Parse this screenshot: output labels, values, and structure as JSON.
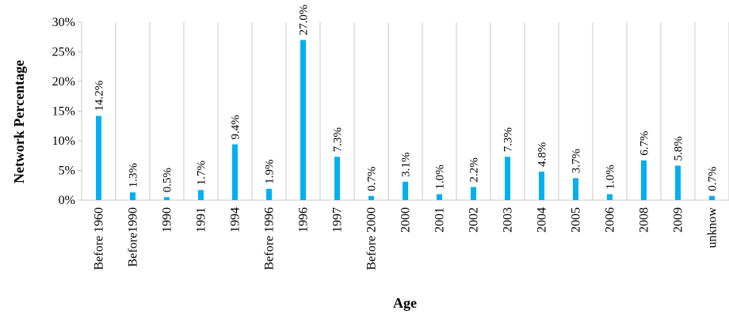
{
  "chart_data": {
    "type": "bar",
    "title": "",
    "xlabel": "Age",
    "ylabel": "Network Percentage",
    "ylim": [
      0,
      30
    ],
    "yticks": [
      "0%",
      "5%",
      "10%",
      "15%",
      "20%",
      "25%",
      "30%"
    ],
    "grid": "vertical gridlines between categories",
    "legend": "none",
    "bar_color": "#00B0F0",
    "categories": [
      "Before 1960",
      "Before1990",
      "1990",
      "1991",
      "1994",
      "Before 1996",
      "1996",
      "1997",
      "Before 2000",
      "2000",
      "2001",
      "2002",
      "2003",
      "2004",
      "2005",
      "2006",
      "2008",
      "2009",
      "unknow"
    ],
    "values": [
      14.2,
      1.3,
      0.5,
      1.7,
      9.4,
      1.9,
      27.0,
      7.3,
      0.7,
      3.1,
      1.0,
      2.2,
      7.3,
      4.8,
      3.7,
      1.0,
      6.7,
      5.8,
      0.7
    ],
    "data_labels": [
      "14.2%",
      "1.3%",
      "0.5%",
      "1.7%",
      "9.4%",
      "1.9%",
      "27.0%",
      "7.3%",
      "0.7%",
      "3.1%",
      "1.0%",
      "2.2%",
      "7.3%",
      "4.8%",
      "3.7%",
      "1.0%",
      "6.7%",
      "5.8%",
      "0.7%"
    ]
  }
}
